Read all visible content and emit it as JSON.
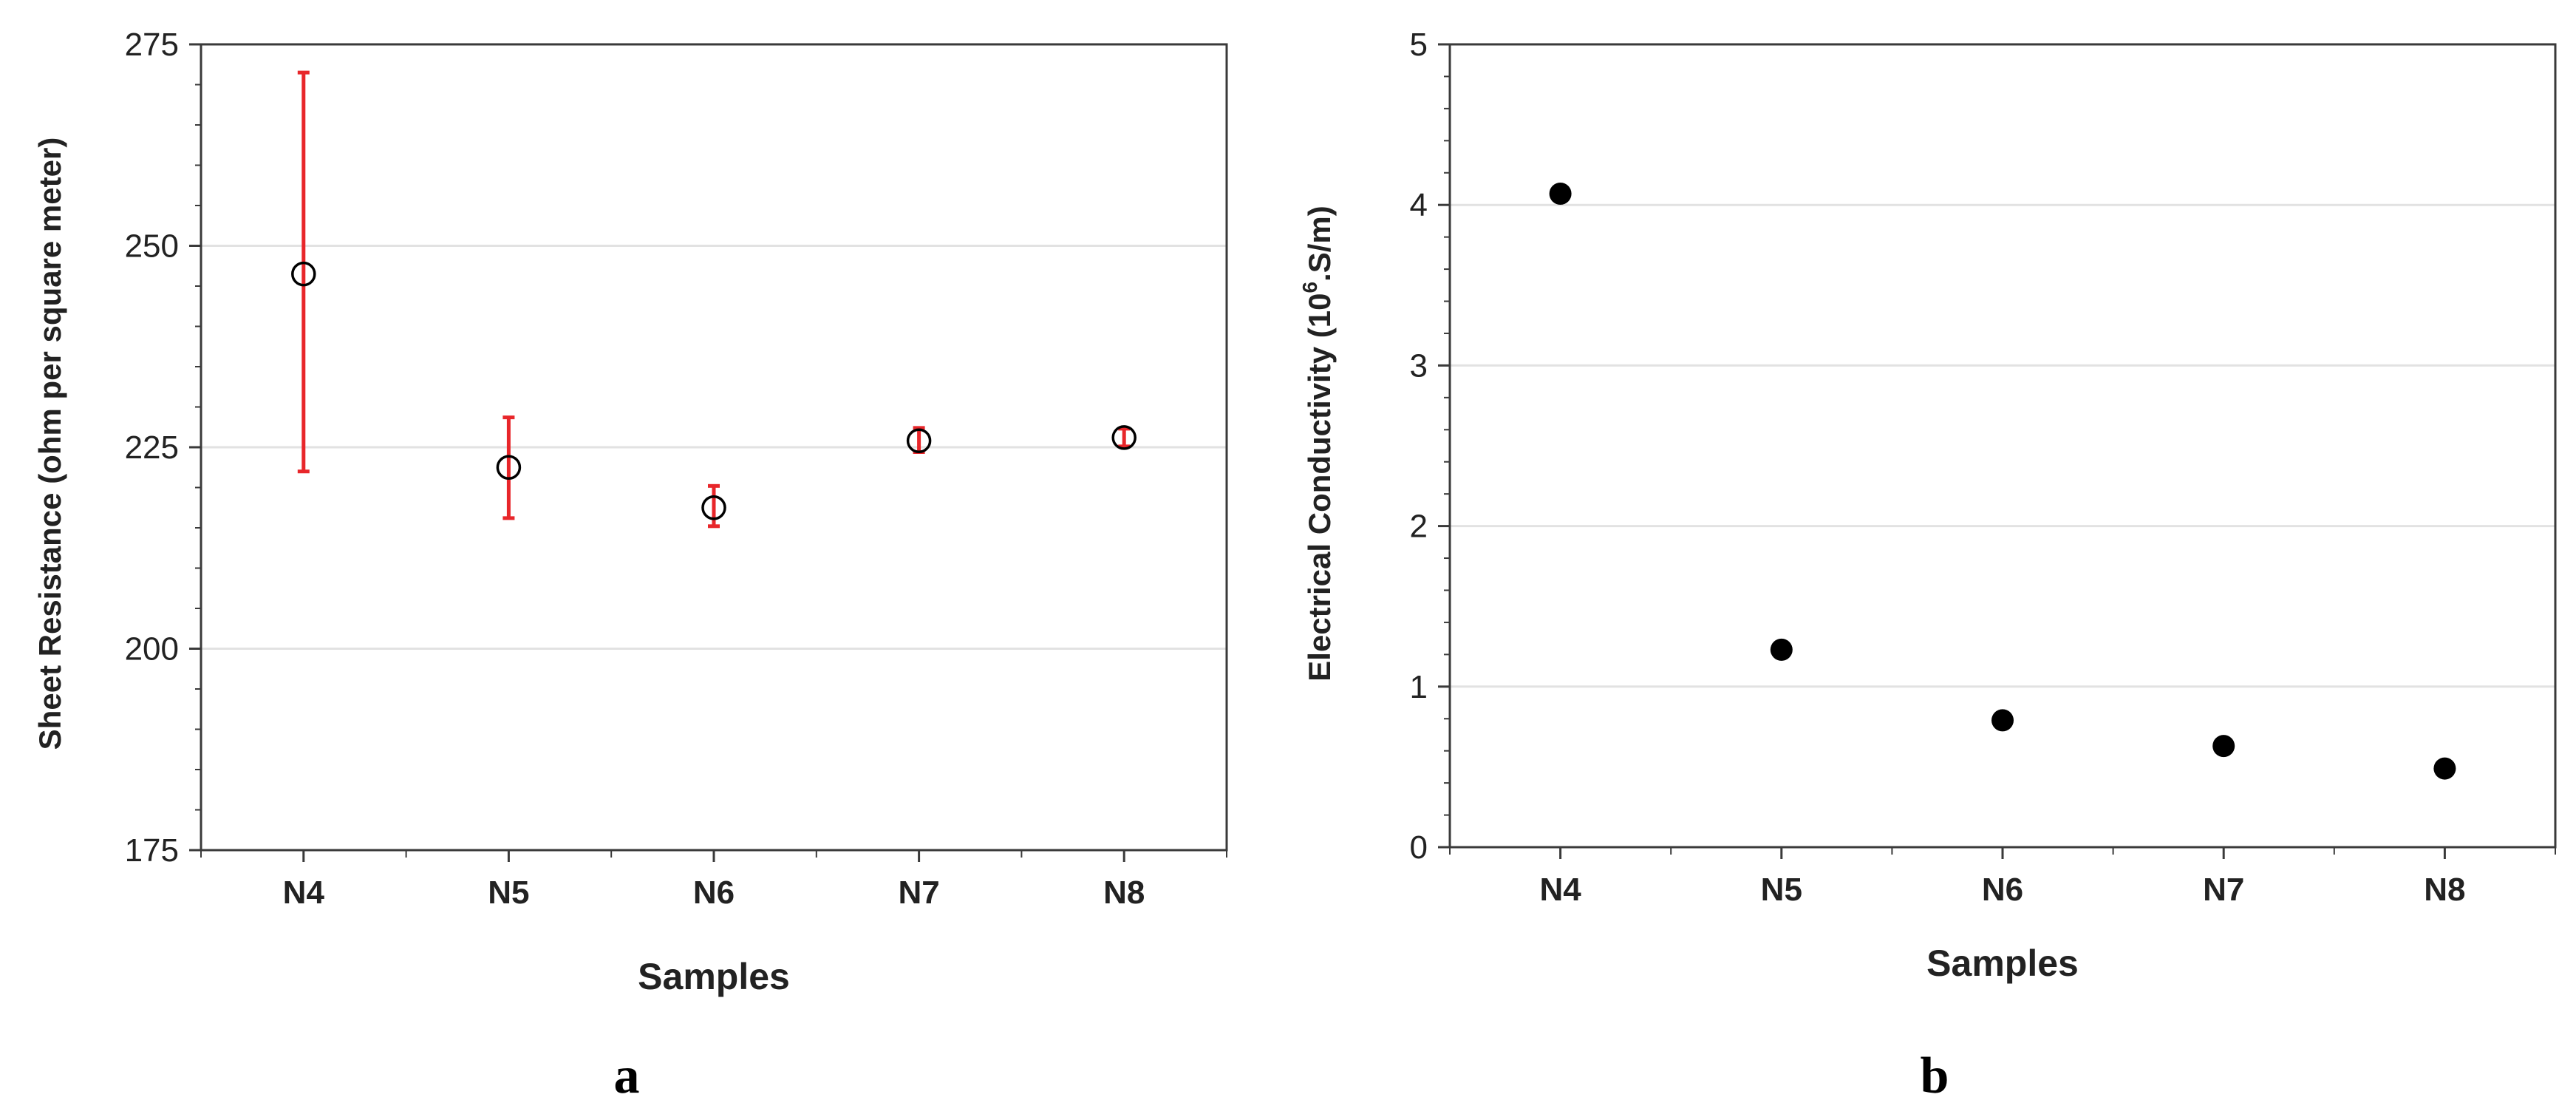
{
  "chart_data": [
    {
      "type": "scatter",
      "panel_label": "a",
      "categories": [
        "N4",
        "N5",
        "N6",
        "N7",
        "N8"
      ],
      "xlabel": "Samples",
      "ylabel": "Sheet Resistance (ohm per square meter)",
      "ylim": [
        175,
        275
      ],
      "yticks": [
        175,
        200,
        225,
        250,
        275
      ],
      "grid": true,
      "marker": "open-circle",
      "series": [
        {
          "values": [
            246.5,
            222.5,
            217.5,
            225.8,
            226.2
          ],
          "error_low": [
            222,
            216.2,
            215.2,
            224.4,
            225.1
          ],
          "error_high": [
            271.5,
            228.7,
            220.2,
            227.4,
            227.3
          ]
        }
      ],
      "colors": {
        "marker": "#000000",
        "error_bar": "#e8262a"
      }
    },
    {
      "type": "scatter",
      "panel_label": "b",
      "categories": [
        "N4",
        "N5",
        "N6",
        "N7",
        "N8"
      ],
      "xlabel": "Samples",
      "ylabel_main": "Electrical Conductivity (10",
      "ylabel_sup": "6",
      "ylabel_tail": ".S/m)",
      "ylim": [
        0,
        5
      ],
      "yticks": [
        0,
        1,
        2,
        3,
        4,
        5
      ],
      "grid": true,
      "marker": "filled-circle",
      "series": [
        {
          "values": [
            4.07,
            1.23,
            0.79,
            0.63,
            0.49
          ]
        }
      ],
      "colors": {
        "marker": "#000000"
      }
    }
  ]
}
